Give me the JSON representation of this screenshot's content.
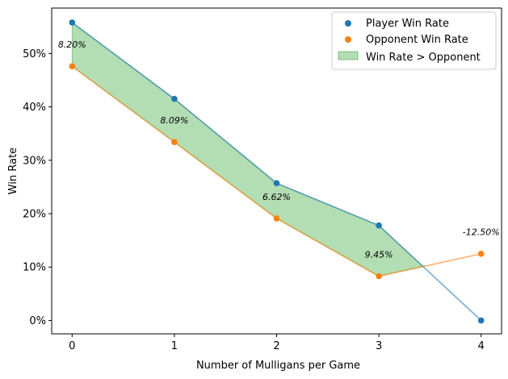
{
  "chart_data": {
    "type": "line",
    "xlabel": "Number of Mulligans per Game",
    "ylabel": "Win Rate",
    "x": [
      0,
      1,
      2,
      3,
      4
    ],
    "xlim": [
      -0.2,
      4.2
    ],
    "ylim": [
      -0.025,
      0.585
    ],
    "yticks": [
      0,
      0.1,
      0.2,
      0.3,
      0.4,
      0.5
    ],
    "ytick_labels": [
      "0%",
      "10%",
      "20%",
      "30%",
      "40%",
      "50%"
    ],
    "xtick_labels": [
      "0",
      "1",
      "2",
      "3",
      "4"
    ],
    "series": [
      {
        "name": "Player Win Rate",
        "values": [
          0.558,
          0.415,
          0.257,
          0.178,
          0.0
        ],
        "color": "#1f77b4"
      },
      {
        "name": "Opponent Win Rate",
        "values": [
          0.476,
          0.334,
          0.191,
          0.083,
          0.125
        ],
        "color": "#ff7f0e"
      }
    ],
    "fill": {
      "name": "Win Rate > Opponent",
      "color": "#2ca02c"
    },
    "annotations": [
      "8.20%",
      "8.09%",
      "6.62%",
      "9.45%",
      "-12.50%"
    ],
    "legend_position": "upper right",
    "grid": false
  }
}
